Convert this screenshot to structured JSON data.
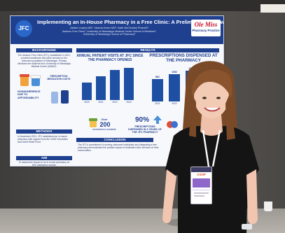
{
  "poster": {
    "title": "Implementing an In-House Pharmacy in a Free Clinic: A Preliminary Review",
    "authors_line1": "Ashlee Lowery MD¹, Victoria Green MD², Katie McClendon PharmD¹",
    "authors_line2": "Jackson Free Clinic¹, University of Mississippi Medical Center School of Medicine²,",
    "authors_line3": "University of Mississippi School of Pharmacy³",
    "logo_text": "JFC",
    "brand_name": "Ole Miss",
    "brand_sub": "Pharmacy Practice",
    "sections": {
      "background": "BACKGROUND",
      "results": "RESULTS",
      "methods": "METHODS",
      "aim": "AIM",
      "conclusion": "CONCLUSION"
    },
    "background_text": "The Jackson Free Clinic (JFC), established in 2001, provides healthcare and other services to the uninsured population of Mississippi. Primary clinicians are students from University of Mississippi Medical Center (UMMC).",
    "prescription_medication_costs": "PRESCRIPTION MEDICATION COSTS",
    "nonadherence": "NONADHERENCE DUE TO AFFORDABILITY",
    "methods_text": "In November 2021, JFC established an in-house pharmacy with support from the 340B Foundation and Direct Relief Fund.",
    "aim_text": "To assess the impact of an in-house pharmacy on free medication access",
    "chart1_title": "ANNUAL PATIENT VISITS AT JFC SINCE THE PHARMACY OPENED",
    "chart2_title": "PRESCRIPTIONS DISPENSED AT THE PHARMACY",
    "over_label": "Over",
    "over_value": "200",
    "over_caption": "medications available",
    "percent_value": "90%",
    "percent_caption": "PRESCRIPTIONS DISPENSED IN 3 YEARS OF THE JFC PHARMACY",
    "conclusion_text": "The JFC's commitment to serving uninsured individuals and integrating a free pharmacy demonstrates the positive impact of dedicated clinic services on their communities."
  },
  "chart_data": [
    {
      "type": "bar",
      "title": "ANNUAL PATIENT VISITS AT JFC SINCE THE PHARMACY OPENED",
      "categories": [
        "2020",
        "2021",
        "2022",
        "2023"
      ],
      "values": [
        480,
        650,
        820,
        880
      ],
      "xlabel": "",
      "ylabel": ""
    },
    {
      "type": "bar",
      "title": "PRESCRIPTIONS DISPENSED AT THE PHARMACY",
      "categories": [
        "2021",
        "2022",
        "2023"
      ],
      "values": [
        861,
        1052,
        1180
      ],
      "value_labels": [
        "861",
        "1052",
        "1180"
      ],
      "xlabel": "",
      "ylabel": ""
    }
  ],
  "badge": {
    "logo_text": "ASHP"
  },
  "colors": {
    "poster_navy": "#1f3f8f",
    "bar_blue": "#1f4fa3",
    "dress": "#141414",
    "hair": "#7a4a28",
    "badge_purple": "#8f66c9"
  }
}
